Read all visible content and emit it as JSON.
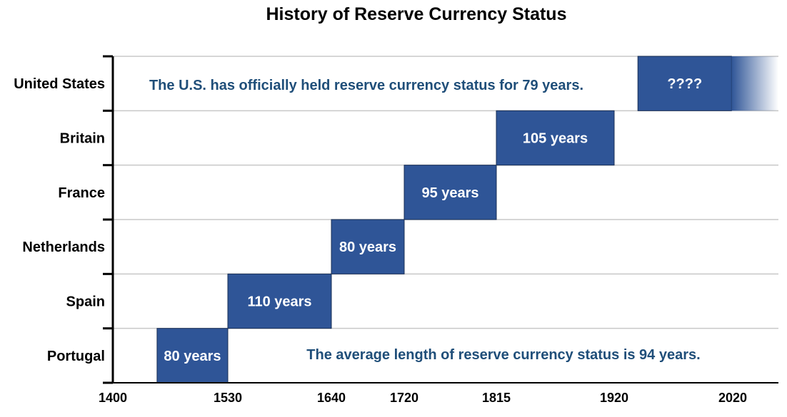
{
  "chart_data": {
    "type": "bar",
    "orientation": "horizontal-timeline",
    "title": "History of Reserve Currency Status",
    "categories": [
      "United States",
      "Britain",
      "France",
      "Netherlands",
      "Spain",
      "Portugal"
    ],
    "series": [
      {
        "category": "Portugal",
        "start": 1450,
        "end": 1530,
        "label": "80 years"
      },
      {
        "category": "Spain",
        "start": 1530,
        "end": 1640,
        "label": "110 years"
      },
      {
        "category": "Netherlands",
        "start": 1640,
        "end": 1720,
        "label": "80 years"
      },
      {
        "category": "France",
        "start": 1720,
        "end": 1815,
        "label": "95 years"
      },
      {
        "category": "Britain",
        "start": 1815,
        "end": 1920,
        "label": "105 years"
      },
      {
        "category": "United States",
        "start": 1940,
        "end": 2019,
        "label": "????",
        "open_ended": true
      }
    ],
    "x_ticks": [
      1400,
      1530,
      1640,
      1720,
      1815,
      1920,
      2020
    ],
    "xlim": [
      1400,
      2100
    ],
    "annotations": {
      "us_note": "The U.S. has officially held reserve currency status for 79 years.",
      "avg_note": "The average length of reserve currency status is 94 years."
    },
    "grid": true,
    "bar_color": "#2F5597",
    "note_color": "#1F4E79"
  }
}
